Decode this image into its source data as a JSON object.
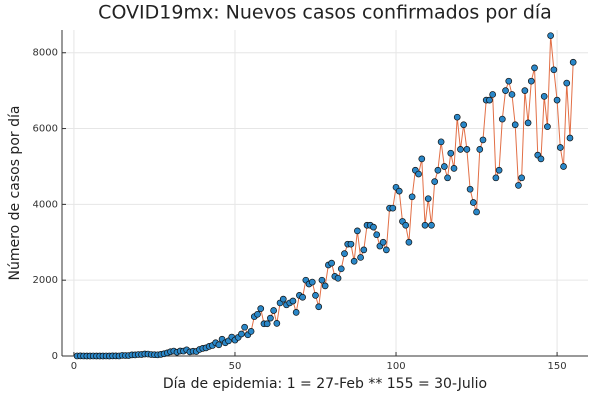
{
  "chart_data": {
    "type": "scatter-line",
    "title": "COVID19mx: Nuevos casos confirmados por día",
    "x_label": "Día de epidemia: 1 = 27-Feb ** 155 = 30-Julio",
    "y_label": "Número de casos por día",
    "x": [
      1,
      2,
      3,
      4,
      5,
      6,
      7,
      8,
      9,
      10,
      11,
      12,
      13,
      14,
      15,
      16,
      17,
      18,
      19,
      20,
      21,
      22,
      23,
      24,
      25,
      26,
      27,
      28,
      29,
      30,
      31,
      32,
      33,
      34,
      35,
      36,
      37,
      38,
      39,
      40,
      41,
      42,
      43,
      44,
      45,
      46,
      47,
      48,
      49,
      50,
      51,
      52,
      53,
      54,
      55,
      56,
      57,
      58,
      59,
      60,
      61,
      62,
      63,
      64,
      65,
      66,
      67,
      68,
      69,
      70,
      71,
      72,
      73,
      74,
      75,
      76,
      77,
      78,
      79,
      80,
      81,
      82,
      83,
      84,
      85,
      86,
      87,
      88,
      89,
      90,
      91,
      92,
      93,
      94,
      95,
      96,
      97,
      98,
      99,
      100,
      101,
      102,
      103,
      104,
      105,
      106,
      107,
      108,
      109,
      110,
      111,
      112,
      113,
      114,
      115,
      116,
      117,
      118,
      119,
      120,
      121,
      122,
      123,
      124,
      125,
      126,
      127,
      128,
      129,
      130,
      131,
      132,
      133,
      134,
      135,
      136,
      137,
      138,
      139,
      140,
      141,
      142,
      143,
      144,
      145,
      146,
      147,
      148,
      149,
      150,
      151,
      152,
      153,
      154,
      155
    ],
    "values": [
      1,
      3,
      1,
      0,
      0,
      1,
      0,
      0,
      0,
      1,
      0,
      4,
      4,
      1,
      15,
      12,
      12,
      29,
      29,
      38,
      40,
      52,
      51,
      38,
      34,
      31,
      42,
      60,
      83,
      112,
      130,
      98,
      132,
      130,
      163,
      109,
      125,
      119,
      173,
      202,
      215,
      253,
      278,
      350,
      296,
      442,
      350,
      400,
      500,
      420,
      490,
      580,
      760,
      560,
      650,
      1040,
      1100,
      1250,
      850,
      850,
      1000,
      1200,
      860,
      1400,
      1500,
      1350,
      1400,
      1450,
      1150,
      1600,
      1550,
      2000,
      1900,
      1950,
      1600,
      1300,
      2000,
      1850,
      2400,
      2450,
      2100,
      2050,
      2300,
      2700,
      2950,
      2950,
      2500,
      3300,
      2600,
      2800,
      3450,
      3450,
      3400,
      3200,
      2900,
      3000,
      2800,
      3900,
      3900,
      4450,
      4350,
      3550,
      3450,
      3000,
      4200,
      4900,
      4800,
      5200,
      3450,
      4150,
      3450,
      4600,
      4900,
      5650,
      5000,
      4700,
      5350,
      4950,
      6300,
      5450,
      6100,
      5450,
      4400,
      4050,
      3800,
      5450,
      5700,
      6750,
      6750,
      6900,
      4700,
      4900,
      6250,
      7000,
      7250,
      6900,
      6100,
      4500,
      4700,
      7000,
      6150,
      7250,
      7600,
      5300,
      5200,
      6850,
      6050,
      8450,
      7550,
      6750,
      5500,
      5000,
      7200,
      5750,
      7750
    ],
    "line_color": "#e26f46",
    "marker_color": "#2a87c8",
    "xlim": [
      -3.7,
      159.6
    ],
    "xticks": [
      0,
      50,
      100,
      150
    ],
    "ylim": [
      0,
      8600
    ],
    "yticks": [
      0,
      2000,
      4000,
      6000,
      8000
    ],
    "grid": true
  }
}
